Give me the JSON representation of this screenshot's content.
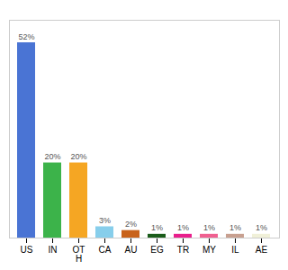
{
  "chart_data": {
    "type": "bar",
    "categories": [
      "US",
      "IN",
      "OT\nH",
      "CA",
      "AU",
      "EG",
      "TR",
      "MY",
      "IL",
      "AE"
    ],
    "values": [
      52,
      20,
      20,
      3,
      2,
      1,
      1,
      1,
      1,
      1
    ],
    "value_labels": [
      "52%",
      "20%",
      "20%",
      "3%",
      "2%",
      "1%",
      "1%",
      "1%",
      "1%",
      "1%"
    ],
    "colors": [
      "#4a74d4",
      "#3cb34a",
      "#f5a623",
      "#87ceeb",
      "#c8621a",
      "#1a5c1a",
      "#e91e8c",
      "#f06090",
      "#c8a090",
      "#f0f0d8"
    ],
    "ylim": [
      0,
      58
    ],
    "data_labels": true,
    "tick_labels": "x"
  }
}
